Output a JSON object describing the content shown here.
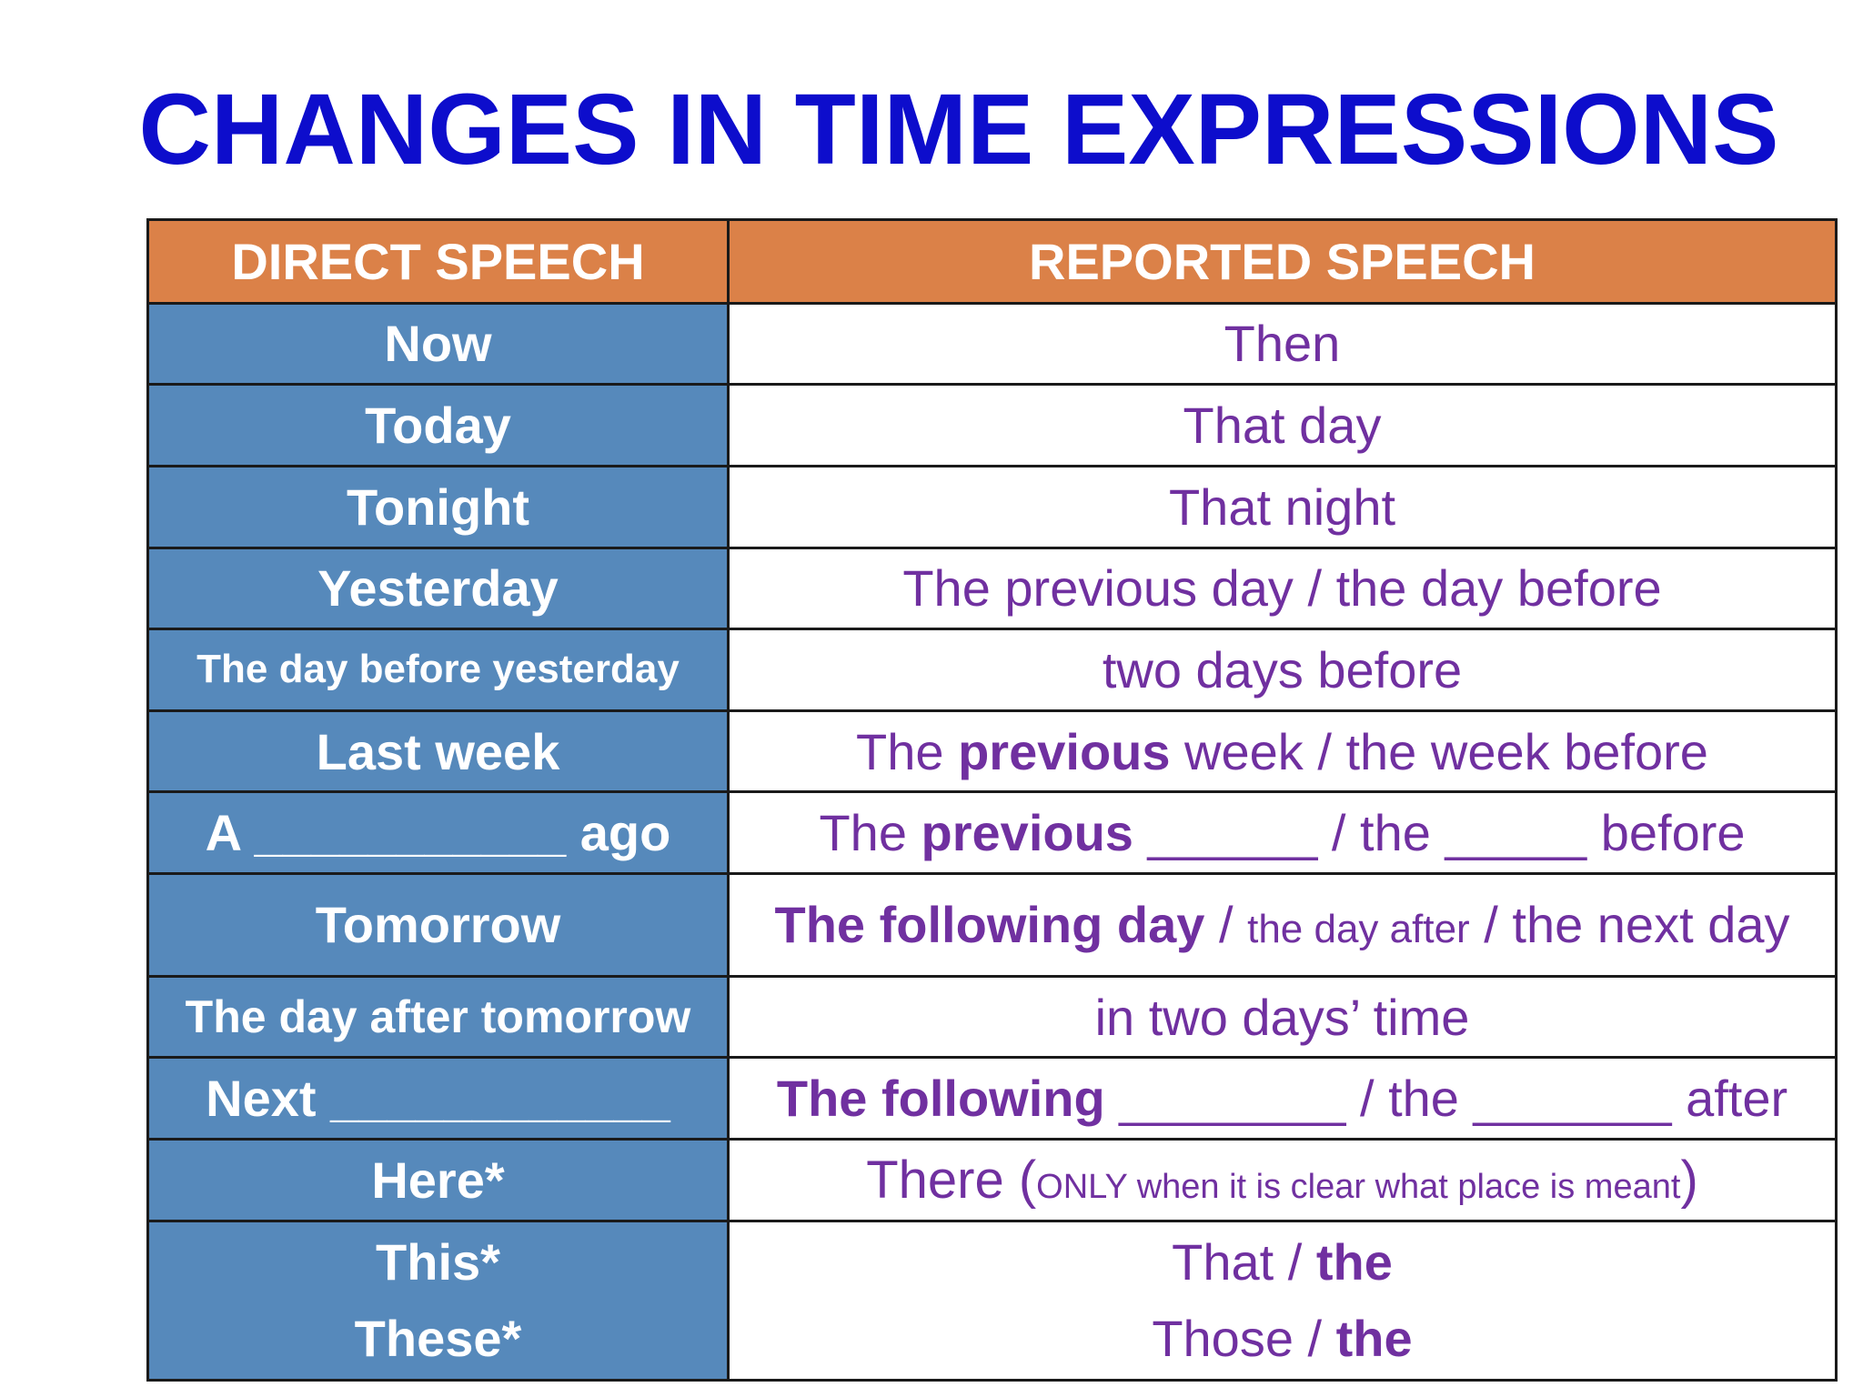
{
  "title": "CHANGES IN TIME EXPRESSIONS",
  "table": {
    "headers": {
      "direct": "DIRECT SPEECH",
      "reported": "REPORTED SPEECH"
    },
    "rows": [
      {
        "direct": "Now",
        "reported": [
          "Then"
        ]
      },
      {
        "direct": "Today",
        "reported": [
          "That day"
        ]
      },
      {
        "direct": "Tonight",
        "reported": [
          "That night"
        ]
      },
      {
        "direct": "Yesterday",
        "reported": [
          "The previous day / the day before"
        ]
      },
      {
        "direct": "The day before yesterday",
        "reported": [
          "two days before"
        ]
      },
      {
        "direct": "Last week",
        "reported": [
          "The ",
          "previous",
          " week / the week before"
        ]
      },
      {
        "direct": "A ___________ ago",
        "reported": [
          "The ",
          "previous",
          " ______ / the _____ before"
        ]
      },
      {
        "direct": "Tomorrow",
        "reported": [
          "The following day",
          " / ",
          "the day after",
          " / the next day"
        ]
      },
      {
        "direct": "The day after tomorrow",
        "reported": [
          "in two days’ time"
        ]
      },
      {
        "direct": "Next ____________",
        "reported": [
          "The following",
          " ________ / the _______ after"
        ]
      },
      {
        "direct": "Here*",
        "reported": [
          "There (",
          "ONLY when it is clear what place is meant",
          ")"
        ]
      },
      {
        "direct": [
          "This*",
          "These*"
        ],
        "reported": [
          [
            "That  / ",
            "the"
          ],
          [
            "Those / ",
            "the"
          ]
        ]
      }
    ]
  }
}
